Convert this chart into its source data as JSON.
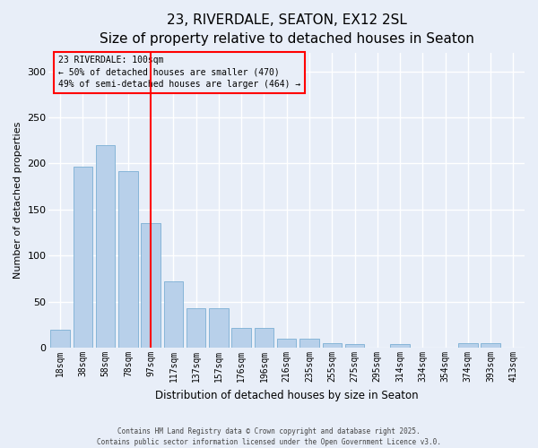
{
  "title_line1": "23, RIVERDALE, SEATON, EX12 2SL",
  "title_line2": "Size of property relative to detached houses in Seaton",
  "xlabel": "Distribution of detached houses by size in Seaton",
  "ylabel": "Number of detached properties",
  "categories": [
    "18sqm",
    "38sqm",
    "58sqm",
    "78sqm",
    "97sqm",
    "117sqm",
    "137sqm",
    "157sqm",
    "176sqm",
    "196sqm",
    "216sqm",
    "235sqm",
    "255sqm",
    "275sqm",
    "295sqm",
    "314sqm",
    "334sqm",
    "354sqm",
    "374sqm",
    "393sqm",
    "413sqm"
  ],
  "values": [
    20,
    197,
    220,
    192,
    135,
    72,
    43,
    43,
    22,
    22,
    10,
    10,
    5,
    4,
    0,
    4,
    0,
    0,
    5,
    5,
    0
  ],
  "bar_color": "#b8d0ea",
  "bar_edge_color": "#7bafd4",
  "red_line_x": 4.0,
  "annotation_title": "23 RIVERDALE: 100sqm",
  "annotation_line2": "← 50% of detached houses are smaller (470)",
  "annotation_line3": "49% of semi-detached houses are larger (464) →",
  "background_color": "#e8eef8",
  "grid_color": "#ffffff",
  "footer_line1": "Contains HM Land Registry data © Crown copyright and database right 2025.",
  "footer_line2": "Contains public sector information licensed under the Open Government Licence v3.0.",
  "ylim": [
    0,
    320
  ],
  "yticks": [
    0,
    50,
    100,
    150,
    200,
    250,
    300
  ],
  "title_fontsize": 11,
  "axis_label_fontsize": 8,
  "tick_fontsize": 7,
  "ann_fontsize": 7
}
